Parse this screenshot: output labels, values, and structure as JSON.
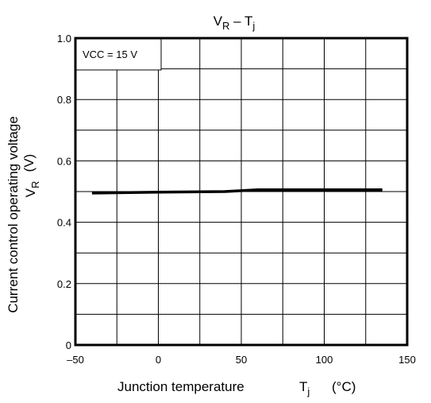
{
  "chart_data": {
    "type": "line",
    "title": {
      "main": "V",
      "sub1": "R",
      "mid": " – T",
      "sub2": "j"
    },
    "ylabel": {
      "line1": "Current control operating voltage",
      "sym": "V",
      "sub": "R",
      "unit": "(V)"
    },
    "xlabel": {
      "text": "Junction temperature",
      "sym": "T",
      "sub": "j",
      "unit": "(°C)"
    },
    "xlim": [
      -50,
      150
    ],
    "ylim": [
      0,
      1.0
    ],
    "xticks": [
      -50,
      0,
      50,
      100,
      150
    ],
    "xtick_labels": [
      "–50",
      "0",
      "50",
      "100",
      "150"
    ],
    "xgrid_step": 25,
    "yticks": [
      0,
      0.2,
      0.4,
      0.6,
      0.8,
      1.0
    ],
    "ytick_labels": [
      "0",
      "0.2",
      "0.4",
      "0.6",
      "0.8",
      "1.0"
    ],
    "ygrid_step": 0.1,
    "grid": true,
    "annotation": "VCC = 15 V",
    "series": [
      {
        "x": [
          -40,
          0,
          40,
          60,
          80,
          100,
          135
        ],
        "y": [
          0.495,
          0.498,
          0.5,
          0.506,
          0.506,
          0.506,
          0.506
        ]
      }
    ],
    "line_color": "#000000"
  }
}
